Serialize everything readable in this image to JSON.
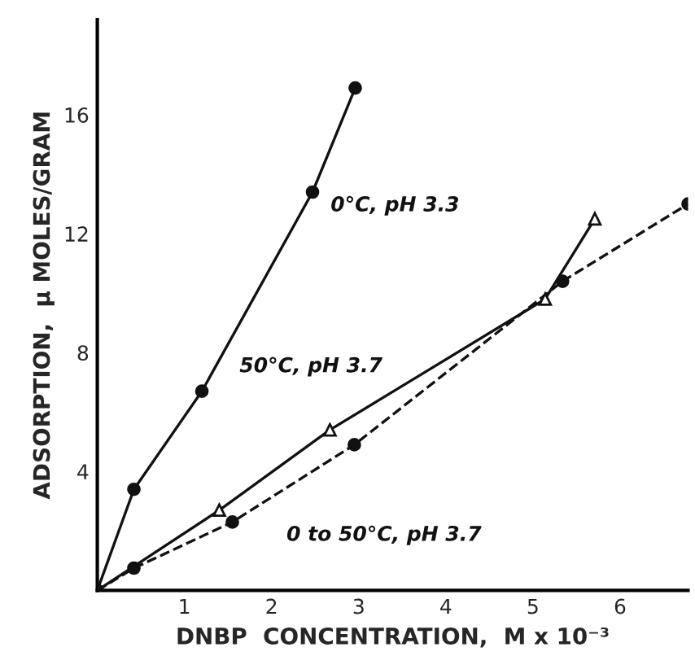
{
  "chart_data": {
    "type": "line",
    "xlabel": "DNBP  CONCENTRATION,  M x 10⁻³",
    "ylabel": "ADSORPTION,  μ MOLES/GRAM",
    "xlim": [
      0,
      6.78
    ],
    "ylim": [
      0,
      19.2
    ],
    "xticks": [
      1,
      2,
      3,
      4,
      5,
      6
    ],
    "yticks": [
      4,
      8,
      12,
      16
    ],
    "grid": false,
    "legend": false,
    "series": [
      {
        "name": "0°C, pH 3.3",
        "color": "#111111",
        "marker": "circle",
        "line_style": "solid",
        "x": [
          0,
          0.42,
          1.2,
          2.47,
          2.96
        ],
        "values": [
          0,
          3.4,
          6.7,
          13.4,
          16.9
        ]
      },
      {
        "name": "50°C, pH 3.7",
        "color": "#111111",
        "marker": "triangle",
        "line_style": "solid",
        "x": [
          0,
          1.4,
          2.67,
          5.14,
          5.71
        ],
        "values": [
          0,
          2.7,
          5.4,
          9.8,
          12.5
        ]
      },
      {
        "name": "0 to 50°C, pH 3.7",
        "color": "#111111",
        "marker": "circle",
        "line_style": "dashed",
        "x": [
          0,
          0.42,
          1.55,
          2.95,
          5.34,
          6.78
        ],
        "values": [
          0,
          0.75,
          2.3,
          4.9,
          10.4,
          13.0
        ]
      }
    ]
  }
}
